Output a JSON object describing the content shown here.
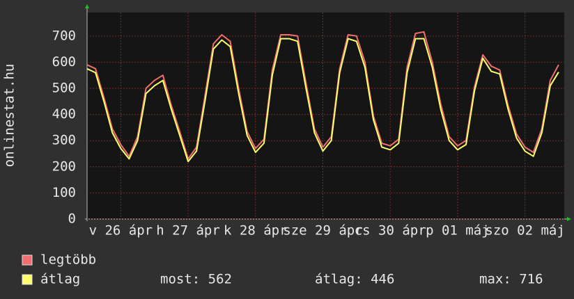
{
  "chart_data": {
    "type": "line",
    "y_label": "onlinestat.hu",
    "x": [
      0,
      3,
      6,
      9,
      12,
      15,
      18,
      21,
      24,
      27,
      30,
      33,
      36,
      39,
      42,
      45,
      48,
      51,
      54,
      57,
      60,
      63,
      66,
      69,
      72,
      75,
      78,
      81,
      84,
      87,
      90,
      93,
      96,
      99,
      102,
      105,
      108,
      111,
      114,
      117,
      120,
      123,
      126,
      129,
      132,
      135,
      138,
      141,
      144,
      147,
      150,
      153,
      156,
      159,
      162,
      165,
      168
    ],
    "xlim": [
      0,
      170
    ],
    "xticks": [
      {
        "value": 12,
        "label": "v 26 ápr"
      },
      {
        "value": 36,
        "label": "h 27 ápr"
      },
      {
        "value": 60,
        "label": "k 28 ápr"
      },
      {
        "value": 84,
        "label": "sze 29 ápr"
      },
      {
        "value": 108,
        "label": "cs 30 ápr"
      },
      {
        "value": 132,
        "label": "p 01 máj"
      },
      {
        "value": 156,
        "label": "szo 02 máj"
      }
    ],
    "ylim": [
      0,
      790
    ],
    "yticks": [
      0,
      100,
      200,
      300,
      400,
      500,
      600,
      700
    ],
    "grid": true,
    "series": [
      {
        "name": "legtöbb",
        "color": "#f07070",
        "values": [
          590,
          575,
          465,
          345,
          285,
          240,
          315,
          500,
          530,
          550,
          435,
          335,
          230,
          275,
          470,
          670,
          705,
          680,
          500,
          335,
          270,
          305,
          570,
          705,
          705,
          700,
          520,
          345,
          275,
          315,
          575,
          705,
          700,
          600,
          395,
          290,
          280,
          305,
          580,
          710,
          716,
          600,
          440,
          315,
          280,
          300,
          505,
          628,
          585,
          570,
          435,
          325,
          275,
          255,
          345,
          530,
          590
        ]
      },
      {
        "name": "átlag",
        "color": "#ffff70",
        "values": [
          575,
          560,
          450,
          330,
          270,
          230,
          300,
          480,
          510,
          530,
          420,
          320,
          220,
          260,
          450,
          650,
          685,
          660,
          480,
          320,
          255,
          290,
          550,
          690,
          690,
          680,
          500,
          330,
          260,
          300,
          560,
          690,
          680,
          580,
          380,
          275,
          265,
          290,
          560,
          690,
          690,
          580,
          420,
          300,
          265,
          285,
          490,
          615,
          565,
          555,
          420,
          310,
          260,
          240,
          330,
          510,
          562
        ]
      }
    ],
    "stats": [
      "most: 562",
      "átlag: 446",
      "max: 716"
    ]
  }
}
